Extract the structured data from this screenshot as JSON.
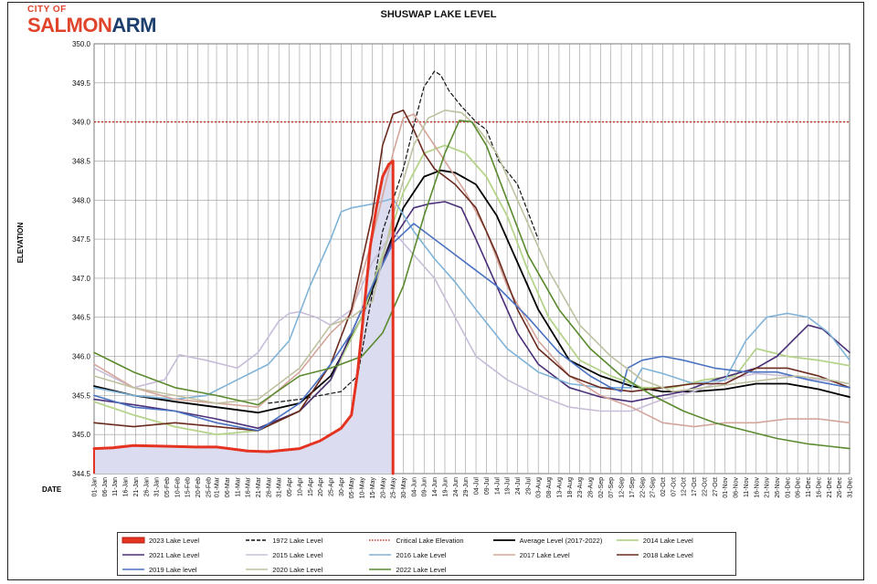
{
  "logo": {
    "line1": "CITY OF",
    "part1": "SALMON",
    "part2": "ARM"
  },
  "chart_data": {
    "type": "line",
    "title": "SHUSWAP LAKE LEVEL",
    "ylabel": "ELEVATION",
    "xlabel": "DATE",
    "ylim": [
      344.5,
      350.0
    ],
    "yticks": [
      "344.5",
      "345.0",
      "345.5",
      "346.0",
      "346.5",
      "347.0",
      "347.5",
      "348.0",
      "348.5",
      "349.0",
      "349.5",
      "350.0"
    ],
    "xlim": [
      1,
      365
    ],
    "xtick_days": [
      1,
      6,
      11,
      16,
      21,
      26,
      31,
      36,
      41,
      46,
      51,
      56,
      60,
      65,
      70,
      75,
      80,
      85,
      90,
      95,
      100,
      105,
      110,
      115,
      120,
      125,
      130,
      135,
      140,
      145,
      150,
      155,
      160,
      165,
      170,
      175,
      180,
      185,
      190,
      195,
      200,
      205,
      210,
      215,
      220,
      225,
      230,
      235,
      240,
      245,
      250,
      255,
      260,
      265,
      270,
      275,
      280,
      285,
      290,
      295,
      300,
      305,
      310,
      315,
      320,
      325,
      330,
      335,
      340,
      345,
      350,
      355,
      360,
      365
    ],
    "xticks": [
      "01-Jan",
      "06-Jan",
      "11-Jan",
      "16-Jan",
      "21-Jan",
      "26-Jan",
      "31-Jan",
      "05-Feb",
      "10-Feb",
      "15-Feb",
      "20-Feb",
      "25-Feb",
      "01-Mar",
      "06-Mar",
      "11-Mar",
      "16-Mar",
      "21-Mar",
      "26-Mar",
      "31-Mar",
      "05-Apr",
      "10-Apr",
      "15-Apr",
      "20-Apr",
      "25-Apr",
      "30-Apr",
      "05-May",
      "10-May",
      "15-May",
      "20-May",
      "25-May",
      "30-May",
      "04-Jun",
      "09-Jun",
      "14-Jun",
      "19-Jun",
      "24-Jun",
      "29-Jun",
      "04-Jul",
      "09-Jul",
      "14-Jul",
      "19-Jul",
      "24-Jul",
      "29-Jul",
      "03-Aug",
      "08-Aug",
      "13-Aug",
      "18-Aug",
      "23-Aug",
      "28-Aug",
      "02-Sep",
      "07-Sep",
      "12-Sep",
      "17-Sep",
      "22-Sep",
      "27-Sep",
      "02-Oct",
      "07-Oct",
      "12-Oct",
      "17-Oct",
      "22-Oct",
      "27-Oct",
      "01-Nov",
      "06-Nov",
      "11-Nov",
      "16-Nov",
      "21-Nov",
      "26-Nov",
      "01-Dec",
      "06-Dec",
      "11-Dec",
      "16-Dec",
      "21-Dec",
      "26-Dec",
      "31-Dec"
    ],
    "critical_level": 349.0,
    "series": [
      {
        "name": "2023 Lake Level",
        "color": "#e53322",
        "style": "solid",
        "fill": "#dcdcf0",
        "width": 3,
        "x": [
          1,
          10,
          20,
          35,
          50,
          60,
          75,
          85,
          100,
          110,
          120,
          125,
          128,
          131,
          134,
          137,
          140,
          143,
          145
        ],
        "y": [
          344.82,
          344.83,
          344.86,
          344.85,
          344.84,
          344.84,
          344.79,
          344.78,
          344.82,
          344.92,
          345.08,
          345.25,
          345.8,
          346.6,
          347.4,
          347.9,
          348.3,
          348.46,
          348.5
        ]
      },
      {
        "name": "1972 Lake Level",
        "color": "#111111",
        "style": "dashed",
        "width": 1.2,
        "x": [
          85,
          100,
          110,
          120,
          128,
          135,
          140,
          145,
          150,
          155,
          160,
          165,
          168,
          172,
          178,
          185,
          190,
          196,
          205,
          215
        ],
        "y": [
          345.4,
          345.45,
          345.5,
          345.55,
          345.75,
          346.8,
          347.6,
          348.0,
          348.4,
          348.95,
          349.45,
          349.65,
          349.6,
          349.4,
          349.2,
          349.0,
          348.9,
          348.5,
          348.2,
          347.5
        ]
      },
      {
        "name": "Average Level (2017-2022)",
        "color": "#000000",
        "style": "solid",
        "width": 1.8,
        "x": [
          1,
          20,
          40,
          60,
          80,
          100,
          115,
          130,
          140,
          150,
          160,
          168,
          175,
          185,
          195,
          205,
          215,
          230,
          245,
          260,
          275,
          290,
          305,
          320,
          335,
          350,
          365
        ],
        "y": [
          345.62,
          345.5,
          345.42,
          345.35,
          345.28,
          345.4,
          345.75,
          346.5,
          347.2,
          347.9,
          348.3,
          348.38,
          348.35,
          348.2,
          347.8,
          347.2,
          346.6,
          345.95,
          345.75,
          345.62,
          345.55,
          345.55,
          345.58,
          345.65,
          345.65,
          345.58,
          345.48
        ]
      },
      {
        "name": "2014 Lake Level",
        "color": "#b5d48a",
        "style": "solid",
        "width": 1.8,
        "x": [
          1,
          20,
          40,
          60,
          80,
          100,
          115,
          130,
          140,
          150,
          160,
          170,
          180,
          190,
          200,
          210,
          220,
          235,
          250,
          265,
          280,
          295,
          310,
          320,
          335,
          350,
          365
        ],
        "y": [
          345.42,
          345.25,
          345.1,
          345.0,
          345.05,
          345.3,
          345.7,
          346.5,
          347.3,
          348.1,
          348.6,
          348.7,
          348.6,
          348.3,
          347.8,
          347.1,
          346.5,
          345.95,
          345.75,
          345.6,
          345.6,
          345.7,
          345.75,
          346.1,
          346.0,
          345.95,
          345.88
        ]
      },
      {
        "name": "2021 Lake Level",
        "color": "#4a2f78",
        "style": "solid",
        "width": 1.6,
        "x": [
          1,
          20,
          40,
          60,
          80,
          100,
          115,
          130,
          145,
          155,
          162,
          170,
          178,
          185,
          195,
          205,
          215,
          230,
          245,
          260,
          275,
          285,
          300,
          320,
          330,
          345,
          352,
          365
        ],
        "y": [
          345.45,
          345.38,
          345.3,
          345.2,
          345.08,
          345.3,
          345.7,
          346.6,
          347.5,
          347.9,
          347.95,
          347.98,
          347.9,
          347.5,
          346.9,
          346.3,
          345.9,
          345.6,
          345.48,
          345.42,
          345.5,
          345.55,
          345.7,
          345.85,
          346.0,
          346.4,
          346.35,
          346.05
        ]
      },
      {
        "name": "2015 Lake Level",
        "color": "#c8bdd8",
        "style": "solid",
        "width": 1.6,
        "x": [
          1,
          20,
          35,
          42,
          55,
          70,
          80,
          90,
          95,
          100,
          108,
          115,
          125,
          135,
          145,
          155,
          165,
          175,
          185,
          200,
          215,
          230,
          245,
          260,
          275,
          290,
          305,
          320,
          335,
          350,
          365
        ],
        "y": [
          345.85,
          345.6,
          345.7,
          346.02,
          345.95,
          345.85,
          346.05,
          346.45,
          346.55,
          346.57,
          346.5,
          346.4,
          346.6,
          347.2,
          347.6,
          347.3,
          347.0,
          346.5,
          346.0,
          345.7,
          345.5,
          345.35,
          345.3,
          345.3,
          345.45,
          345.55,
          345.7,
          345.78,
          345.75,
          345.7,
          345.65
        ]
      },
      {
        "name": "2016 Lake Level",
        "color": "#7fb3d8",
        "style": "solid",
        "width": 1.6,
        "x": [
          1,
          20,
          40,
          55,
          70,
          85,
          95,
          105,
          115,
          120,
          125,
          135,
          145,
          155,
          165,
          175,
          185,
          200,
          215,
          230,
          245,
          260,
          265,
          275,
          290,
          305,
          315,
          325,
          335,
          345,
          355,
          365
        ],
        "y": [
          345.6,
          345.5,
          345.45,
          345.5,
          345.7,
          345.9,
          346.2,
          346.9,
          347.5,
          347.85,
          347.9,
          347.95,
          348.02,
          347.6,
          347.25,
          346.95,
          346.6,
          346.1,
          345.8,
          345.65,
          345.6,
          345.6,
          345.85,
          345.78,
          345.65,
          345.7,
          346.2,
          346.5,
          346.55,
          346.5,
          346.3,
          345.95
        ]
      },
      {
        "name": "2017 Lake Level",
        "color": "#d4a59a",
        "style": "solid",
        "width": 1.6,
        "x": [
          1,
          20,
          40,
          60,
          80,
          100,
          115,
          125,
          135,
          145,
          150,
          155,
          160,
          170,
          180,
          190,
          200,
          215,
          230,
          245,
          260,
          275,
          290,
          305,
          320,
          335,
          350,
          365
        ],
        "y": [
          345.9,
          345.6,
          345.45,
          345.4,
          345.35,
          345.8,
          346.3,
          346.55,
          347.5,
          348.6,
          349.05,
          349.1,
          348.9,
          348.5,
          348.1,
          347.6,
          346.9,
          346.2,
          345.75,
          345.5,
          345.35,
          345.15,
          345.1,
          345.15,
          345.15,
          345.2,
          345.2,
          345.15
        ]
      },
      {
        "name": "2018 Lake Level",
        "color": "#6b2a1e",
        "style": "solid",
        "width": 1.6,
        "x": [
          1,
          20,
          40,
          60,
          80,
          100,
          115,
          125,
          135,
          140,
          145,
          150,
          155,
          160,
          165,
          175,
          185,
          195,
          205,
          215,
          230,
          245,
          260,
          275,
          290,
          305,
          320,
          335,
          350,
          365
        ],
        "y": [
          345.15,
          345.1,
          345.15,
          345.1,
          345.05,
          345.3,
          345.9,
          346.6,
          347.8,
          348.7,
          349.1,
          349.15,
          348.9,
          348.6,
          348.4,
          348.2,
          347.9,
          347.3,
          346.6,
          346.1,
          345.75,
          345.6,
          345.55,
          345.6,
          345.65,
          345.65,
          345.85,
          345.85,
          345.75,
          345.6
        ]
      },
      {
        "name": "2019 Lake level",
        "color": "#4a72c2",
        "style": "solid",
        "width": 1.6,
        "x": [
          1,
          20,
          40,
          60,
          80,
          100,
          115,
          125,
          135,
          145,
          155,
          165,
          180,
          195,
          210,
          225,
          240,
          250,
          255,
          258,
          265,
          275,
          285,
          300,
          315,
          330,
          345,
          365
        ],
        "y": [
          345.5,
          345.35,
          345.3,
          345.15,
          345.05,
          345.4,
          345.9,
          346.3,
          346.9,
          347.45,
          347.7,
          347.5,
          347.2,
          346.9,
          346.5,
          346.05,
          345.75,
          345.6,
          345.55,
          345.85,
          345.95,
          346.0,
          345.95,
          345.85,
          345.8,
          345.8,
          345.7,
          345.6
        ]
      },
      {
        "name": "2020 Lake Level",
        "color": "#bfc1a0",
        "style": "solid",
        "width": 1.6,
        "x": [
          1,
          20,
          40,
          60,
          80,
          100,
          115,
          125,
          135,
          145,
          155,
          162,
          170,
          178,
          185,
          195,
          205,
          220,
          235,
          250,
          265,
          280,
          295,
          310,
          325,
          340,
          355,
          365
        ],
        "y": [
          345.75,
          345.6,
          345.5,
          345.4,
          345.45,
          345.85,
          346.4,
          346.5,
          346.7,
          347.8,
          348.7,
          349.05,
          349.15,
          349.12,
          348.95,
          348.6,
          348.0,
          347.1,
          346.4,
          346.0,
          345.7,
          345.55,
          345.6,
          345.65,
          345.7,
          345.75,
          345.7,
          345.65
        ]
      },
      {
        "name": "2022 Lake Level",
        "color": "#5a8a2e",
        "style": "solid",
        "width": 1.6,
        "x": [
          1,
          20,
          40,
          60,
          80,
          100,
          115,
          130,
          140,
          150,
          160,
          170,
          177,
          183,
          190,
          200,
          210,
          225,
          240,
          255,
          270,
          285,
          300,
          315,
          330,
          345,
          355,
          365
        ],
        "y": [
          346.05,
          345.8,
          345.6,
          345.5,
          345.38,
          345.75,
          345.85,
          346.0,
          346.3,
          346.9,
          347.8,
          348.6,
          349.02,
          349.0,
          348.7,
          348.0,
          347.3,
          346.6,
          346.1,
          345.75,
          345.5,
          345.3,
          345.15,
          345.05,
          344.95,
          344.88,
          344.85,
          344.82
        ]
      }
    ],
    "critical_label": "Critical Lake Elevation",
    "critical_color": "#c0392b",
    "legend_placement": "bottom"
  }
}
